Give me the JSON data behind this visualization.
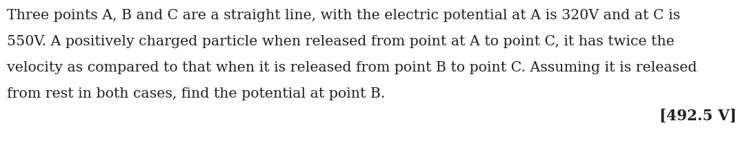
{
  "background_color": "#ffffff",
  "line1": "Three points A, B and C are a straight line, with the electric potential at A is 320V and at C is",
  "line2": "550V. A positively charged particle when released from point at A to point C, it has twice the",
  "line3": "velocity as compared to that when it is released from point B to point C. Assuming it is released",
  "line4": "from rest in both cases, find the potential at point B.",
  "answer_text": "[492.5 V]",
  "text_color": "#231f20",
  "main_fontsize": 14.8,
  "answer_fontsize": 15.5,
  "font_family": "DejaVu Serif"
}
